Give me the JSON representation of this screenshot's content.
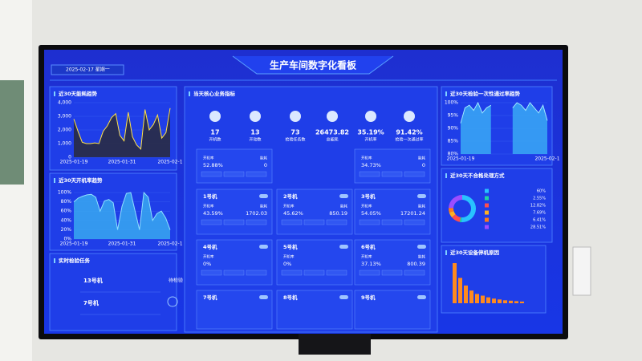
{
  "header": {
    "title": "生产车间数字化看板",
    "date": "2025-02-17 星期一"
  },
  "energy_trend": {
    "title": "近30天能耗趋势",
    "ylim": [
      0,
      4000
    ],
    "yticks": [
      {
        "value": 0,
        "label": "0"
      },
      {
        "value": 1000,
        "label": "1,000"
      },
      {
        "value": 2000,
        "label": "2,000"
      },
      {
        "value": 3000,
        "label": "3,000"
      },
      {
        "value": 4000,
        "label": "4,000"
      }
    ],
    "xlabels": [
      "2025-01-19",
      "2025-01-31",
      "2025-02-1"
    ],
    "values": [
      2800,
      1900,
      1100,
      1000,
      1000,
      1050,
      1000,
      1900,
      2300,
      2900,
      3200,
      1600,
      1200,
      3300,
      1500,
      900,
      600,
      3500,
      2000,
      2400,
      3100,
      1400,
      1800,
      3600
    ]
  },
  "uptime_trend": {
    "title": "近30天开机率趋势",
    "ylim": [
      0,
      100
    ],
    "yticks": [
      {
        "value": 0,
        "label": "0%"
      },
      {
        "value": 20,
        "label": "20%"
      },
      {
        "value": 40,
        "label": "40%"
      },
      {
        "value": 60,
        "label": "60%"
      },
      {
        "value": 80,
        "label": "80%"
      },
      {
        "value": 100,
        "label": "100%"
      }
    ],
    "xlabels": [
      "2025-01-19",
      "2025-01-31",
      "2025-02-1"
    ],
    "values": [
      80,
      88,
      92,
      95,
      96,
      90,
      60,
      82,
      85,
      78,
      20,
      70,
      98,
      100,
      60,
      20,
      100,
      90,
      40,
      55,
      60,
      45,
      20
    ]
  },
  "tasks": {
    "title": "实时检验任务",
    "items": [
      {
        "machine": "13号机",
        "status": "待检验"
      },
      {
        "machine": "7号机"
      }
    ]
  },
  "core": {
    "title": "当天核心业务指标",
    "kpis": [
      {
        "value": "17",
        "label": "开机数"
      },
      {
        "value": "13",
        "label": "开动数"
      },
      {
        "value": "73",
        "label": "检验任务数"
      },
      {
        "value": "26473.82",
        "label": "总能耗"
      },
      {
        "value": "35.19%",
        "label": "开机率"
      },
      {
        "value": "91.42%",
        "label": "检验一次通过率"
      }
    ],
    "field_labels": {
      "rate": "开机率",
      "energy": "能耗"
    },
    "cards": [
      {
        "rate": "52.88%",
        "energy": "0"
      },
      {
        "rate": "34.73%",
        "energy": "0"
      },
      {
        "name": "1号机",
        "rate": "43.59%",
        "energy": "1702.03"
      },
      {
        "name": "2号机",
        "rate": "45.62%",
        "energy": "850.19"
      },
      {
        "name": "3号机",
        "rate": "54.05%",
        "energy": "17201.24"
      },
      {
        "name": "4号机",
        "rate": "0%"
      },
      {
        "name": "5号机",
        "rate": "0%"
      },
      {
        "name": "6号机",
        "rate": "37.13%",
        "energy": "800.39"
      },
      {
        "name": "7号机"
      },
      {
        "name": "8号机"
      },
      {
        "name": "9号机"
      }
    ]
  },
  "pass_trend": {
    "title": "近30天检验一次性通过率趋势",
    "ylim": [
      80,
      100
    ],
    "yticks": [
      {
        "value": 80,
        "label": "80%"
      },
      {
        "value": 85,
        "label": "85%"
      },
      {
        "value": 90,
        "label": "90%"
      },
      {
        "value": 95,
        "label": "95%"
      },
      {
        "value": 100,
        "label": "100%"
      }
    ],
    "xlabels": [
      "2025-01-19",
      "2025-02-1"
    ],
    "values": [
      92,
      98,
      99,
      97,
      100,
      96,
      98,
      99,
      null,
      null,
      null,
      null,
      98,
      100,
      99,
      97,
      100,
      98,
      96,
      99,
      93
    ]
  },
  "defects": {
    "title": "近30天不合格处理方式",
    "values": [
      60,
      2.55,
      12.82,
      7.69,
      6.41,
      28.51
    ],
    "value_labels": [
      "60%",
      "2.55%",
      "12.82%",
      "7.69%",
      "6.41%",
      "28.51%"
    ]
  },
  "stops": {
    "title": "近30天设备停机原因",
    "values": [
      95,
      60,
      42,
      30,
      22,
      18,
      14,
      11,
      9,
      7,
      6,
      5,
      4
    ]
  }
}
